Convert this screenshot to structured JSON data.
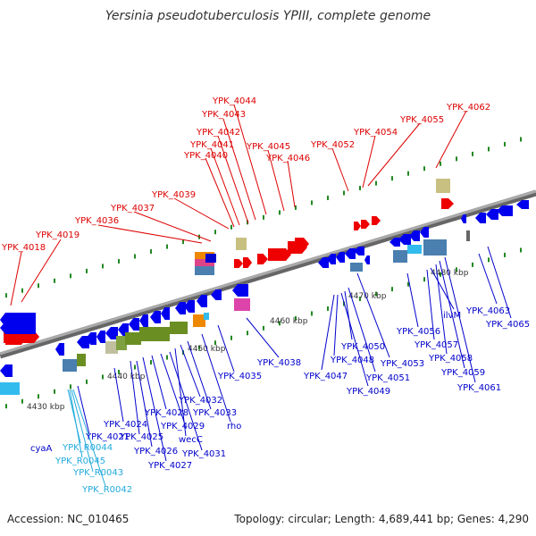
{
  "title": "Yersinia pseudotuberculosis YPIII, complete genome",
  "footer": {
    "accession": "Accession: NC_010465",
    "summary": "Topology: circular; Length: 4,689,441 bp; Genes: 4,290"
  },
  "colors": {
    "backbone": "#8a8a8a",
    "forward_label": "#dd0000",
    "reverse_label": "#0000cc",
    "rna_label": "#22aadd",
    "tick": "#228822"
  },
  "scale_labels": [
    "4430 kbp",
    "4440 kbp",
    "4450 kbp",
    "4460 kbp",
    "4470 kbp",
    "4480 kbp"
  ],
  "top_genes": [
    "YPK_4018",
    "YPK_4019",
    "YPK_4036",
    "YPK_4037",
    "YPK_4039",
    "YPK_4040",
    "YPK_4041",
    "YPK_4042",
    "YPK_4043",
    "YPK_4044",
    "YPK_4045",
    "YPK_4046",
    "YPK_4052",
    "YPK_4054",
    "YPK_4055",
    "YPK_4062"
  ],
  "bottom_genes": [
    "cyaA",
    "YPK_R0044",
    "YPK_R0045",
    "YPK_R0043",
    "YPK_R0042",
    "YPK_4021",
    "YPK_4024",
    "YPK_4025",
    "YPK_4026",
    "YPK_4027",
    "YPK_4028",
    "YPK_4029",
    "YPK_4031",
    "wecC",
    "YPK_4032",
    "YPK_4033",
    "rho",
    "YPK_4035",
    "YPK_4038",
    "YPK_4047",
    "YPK_4048",
    "YPK_4049",
    "YPK_4050",
    "YPK_4051",
    "YPK_4053",
    "YPK_4056",
    "YPK_4057",
    "ilvM",
    "YPK_4058",
    "YPK_4059",
    "YPK_4061",
    "YPK_4063",
    "YPK_4065"
  ]
}
